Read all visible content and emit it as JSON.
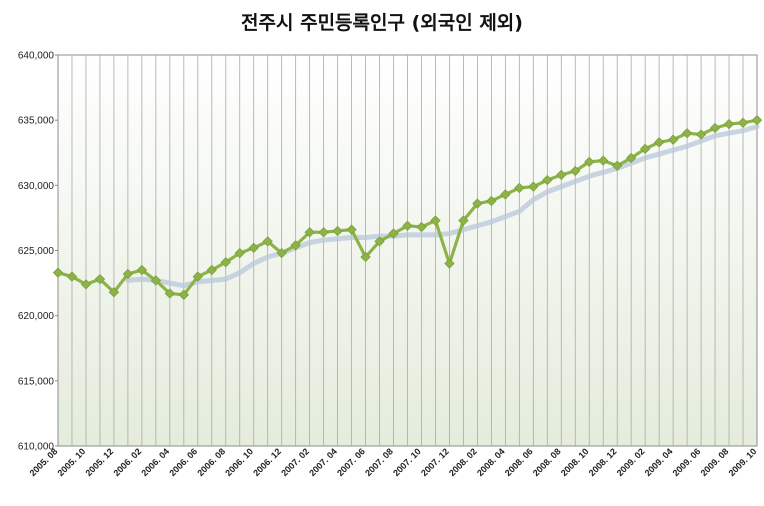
{
  "chart_data": {
    "type": "line",
    "title": "전주시 주민등록인구 (외국인 제외)",
    "xlabel": "",
    "ylabel": "",
    "ylim": [
      610000,
      640000
    ],
    "yticks": [
      "610,000",
      "615,000",
      "620,000",
      "625,000",
      "630,000",
      "635,000",
      "640,000"
    ],
    "grid": "vertical",
    "legend": "none",
    "x": [
      "2005. 08",
      "2005. 09",
      "2005. 10",
      "2005. 11",
      "2005. 12",
      "2006. 01",
      "2006. 02",
      "2006. 03",
      "2006. 04",
      "2006. 05",
      "2006. 06",
      "2006. 07",
      "2006. 08",
      "2006. 09",
      "2006. 10",
      "2006. 11",
      "2006. 12",
      "2007. 01",
      "2007. 02",
      "2007. 03",
      "2007. 04",
      "2007. 05",
      "2007. 06",
      "2007. 07",
      "2007. 08",
      "2007. 09",
      "2007. 10",
      "2007. 11",
      "2007. 12",
      "2008. 01",
      "2008. 02",
      "2008. 03",
      "2008. 04",
      "2008. 05",
      "2008. 06",
      "2008. 07",
      "2008. 08",
      "2008. 09",
      "2008. 10",
      "2008. 11",
      "2008. 12",
      "2009. 01",
      "2009. 02",
      "2009. 03",
      "2009. 04",
      "2009. 05",
      "2009. 06",
      "2009. 07",
      "2009. 08",
      "2009. 09",
      "2009. 10"
    ],
    "xtick_labels": [
      "2005. 08",
      "2005. 10",
      "2005. 12",
      "2006. 02",
      "2006. 04",
      "2006. 06",
      "2006. 08",
      "2006. 10",
      "2006. 12",
      "2007. 02",
      "2007. 04",
      "2007. 06",
      "2007. 08",
      "2007. 10",
      "2007. 12",
      "2008. 02",
      "2008. 04",
      "2008. 06",
      "2008. 08",
      "2008. 10",
      "2008. 12",
      "2009. 02",
      "2009. 04",
      "2009. 06",
      "2009. 08",
      "2009. 10"
    ],
    "series": [
      {
        "name": "",
        "color": "#8db348",
        "marker": "diamond",
        "values": [
          623300,
          623000,
          622400,
          622800,
          621800,
          623200,
          623500,
          622700,
          621700,
          621600,
          623000,
          623500,
          624100,
          624800,
          625200,
          625700,
          624800,
          625400,
          626400,
          626400,
          626500,
          626600,
          624500,
          625700,
          626300,
          626900,
          626800,
          627300,
          624000,
          627300,
          628600,
          628800,
          629300,
          629800,
          629900,
          630400,
          630800,
          631100,
          631800,
          631900,
          631500,
          632100,
          632800,
          633300,
          633500,
          634000,
          633900,
          634400,
          634700,
          634800,
          635000
        ]
      },
      {
        "name": "",
        "color": "#b8c7d8",
        "marker": "none",
        "values": [
          null,
          null,
          null,
          null,
          null,
          622700,
          622800,
          622700,
          622500,
          622300,
          622600,
          622700,
          622800,
          623300,
          624000,
          624500,
          624800,
          625200,
          625600,
          625800,
          625900,
          626000,
          626000,
          626100,
          626100,
          626200,
          626200,
          626200,
          626300,
          626600,
          626900,
          627200,
          627600,
          628000,
          628900,
          629500,
          629900,
          630300,
          630700,
          631000,
          631300,
          631700,
          632100,
          632400,
          632700,
          633000,
          633400,
          633800,
          634000,
          634200,
          634500
        ]
      }
    ]
  }
}
